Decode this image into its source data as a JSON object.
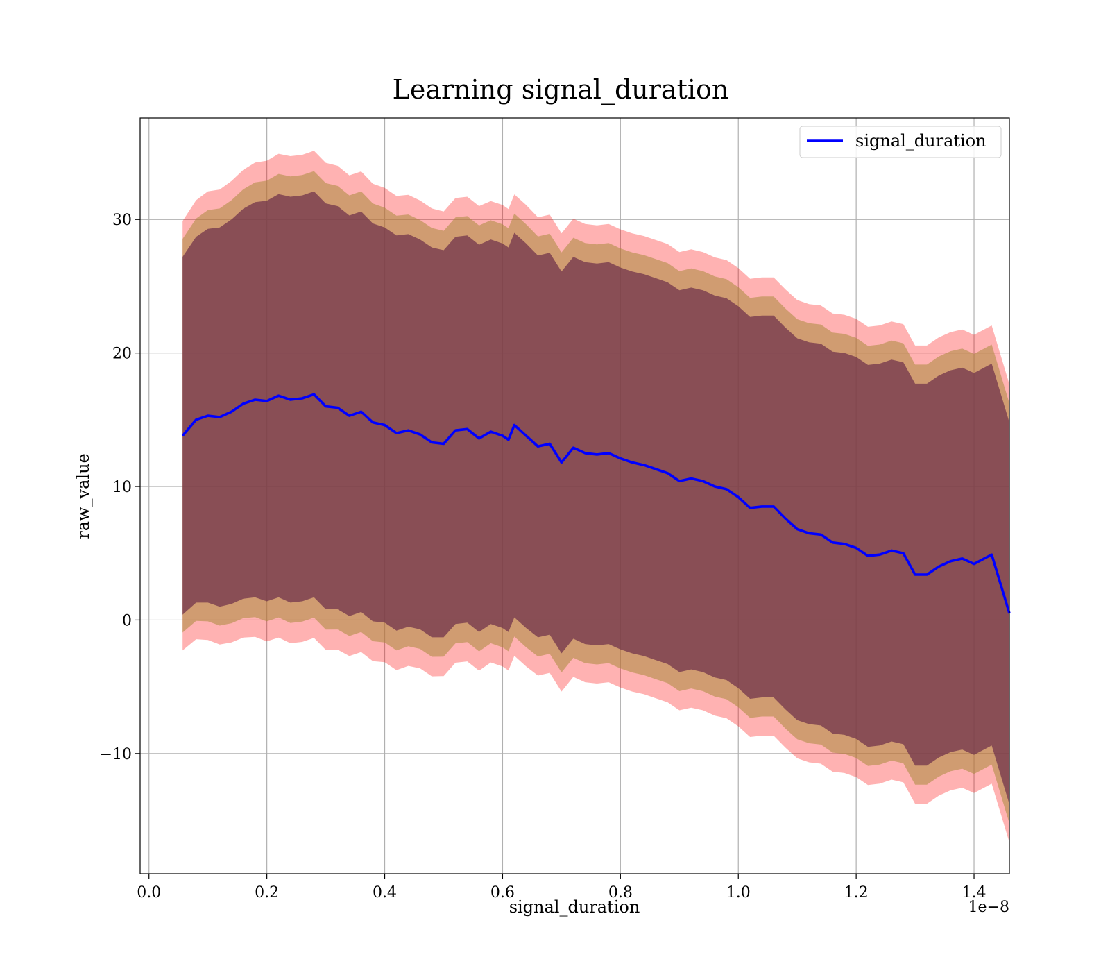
{
  "chart_data": {
    "type": "area",
    "title": "Learning signal_duration",
    "xlabel": "signal_duration",
    "ylabel": "raw_value",
    "x_offset_label": "1e−8",
    "xlim": [
      -0.015,
      1.46
    ],
    "ylim": [
      -19.0,
      37.6
    ],
    "xticks": [
      0.0,
      0.2,
      0.4,
      0.6,
      0.8,
      1.0,
      1.2,
      1.4
    ],
    "xtick_labels": [
      "0.0",
      "0.2",
      "0.4",
      "0.6",
      "0.8",
      "1.0",
      "1.2",
      "1.4"
    ],
    "yticks": [
      -10,
      0,
      10,
      20,
      30
    ],
    "ytick_labels": [
      "−10",
      "0",
      "10",
      "20",
      "30"
    ],
    "grid": true,
    "legend": {
      "position": "top-right",
      "entries": [
        "signal_duration"
      ]
    },
    "colors": {
      "line": "#0000ff",
      "band_outer": "#ff0000",
      "band_middle": "#aa8a3c",
      "band_inner": "#6b2d4a",
      "grid": "#b0b0b0"
    },
    "series": [
      {
        "name": "signal_duration",
        "x": [
          0.057,
          0.08,
          0.1,
          0.12,
          0.14,
          0.16,
          0.18,
          0.2,
          0.22,
          0.24,
          0.26,
          0.28,
          0.3,
          0.32,
          0.34,
          0.36,
          0.38,
          0.4,
          0.42,
          0.44,
          0.46,
          0.48,
          0.5,
          0.52,
          0.54,
          0.56,
          0.58,
          0.6,
          0.61,
          0.62,
          0.64,
          0.66,
          0.68,
          0.7,
          0.72,
          0.74,
          0.76,
          0.78,
          0.8,
          0.82,
          0.84,
          0.86,
          0.88,
          0.9,
          0.92,
          0.94,
          0.96,
          0.98,
          1.0,
          1.02,
          1.04,
          1.06,
          1.08,
          1.1,
          1.12,
          1.14,
          1.16,
          1.18,
          1.2,
          1.22,
          1.24,
          1.26,
          1.28,
          1.3,
          1.32,
          1.34,
          1.36,
          1.38,
          1.4,
          1.43,
          1.46
        ],
        "y": [
          13.8,
          15.0,
          15.3,
          15.2,
          15.6,
          16.2,
          16.5,
          16.4,
          16.8,
          16.5,
          16.6,
          16.9,
          16.0,
          15.9,
          15.3,
          15.6,
          14.8,
          14.6,
          14.0,
          14.2,
          13.9,
          13.3,
          13.2,
          14.2,
          14.3,
          13.6,
          14.1,
          13.8,
          13.5,
          14.6,
          13.8,
          13.0,
          13.2,
          11.8,
          12.9,
          12.5,
          12.4,
          12.5,
          12.1,
          11.8,
          11.6,
          11.3,
          11.0,
          10.4,
          10.6,
          10.4,
          10.0,
          9.8,
          9.2,
          8.4,
          8.5,
          8.5,
          7.6,
          6.8,
          6.5,
          6.4,
          5.8,
          5.7,
          5.4,
          4.8,
          4.9,
          5.2,
          5.0,
          3.4,
          3.4,
          4.0,
          4.4,
          4.6,
          4.2,
          4.9,
          0.5
        ],
        "std": [
          13.4,
          13.7,
          14.0,
          14.2,
          14.4,
          14.6,
          14.8,
          15.0,
          15.1,
          15.2,
          15.2,
          15.2,
          15.2,
          15.1,
          15.0,
          15.0,
          14.9,
          14.8,
          14.8,
          14.7,
          14.6,
          14.6,
          14.5,
          14.5,
          14.5,
          14.5,
          14.4,
          14.4,
          14.4,
          14.4,
          14.4,
          14.3,
          14.3,
          14.3,
          14.3,
          14.3,
          14.3,
          14.3,
          14.3,
          14.3,
          14.3,
          14.3,
          14.3,
          14.3,
          14.3,
          14.3,
          14.3,
          14.3,
          14.3,
          14.3,
          14.3,
          14.3,
          14.3,
          14.3,
          14.3,
          14.3,
          14.3,
          14.3,
          14.3,
          14.3,
          14.3,
          14.3,
          14.3,
          14.3,
          14.3,
          14.3,
          14.3,
          14.3,
          14.3,
          14.3,
          14.3
        ],
        "band_multipliers": [
          1.2,
          1.1,
          1.0
        ]
      }
    ]
  }
}
